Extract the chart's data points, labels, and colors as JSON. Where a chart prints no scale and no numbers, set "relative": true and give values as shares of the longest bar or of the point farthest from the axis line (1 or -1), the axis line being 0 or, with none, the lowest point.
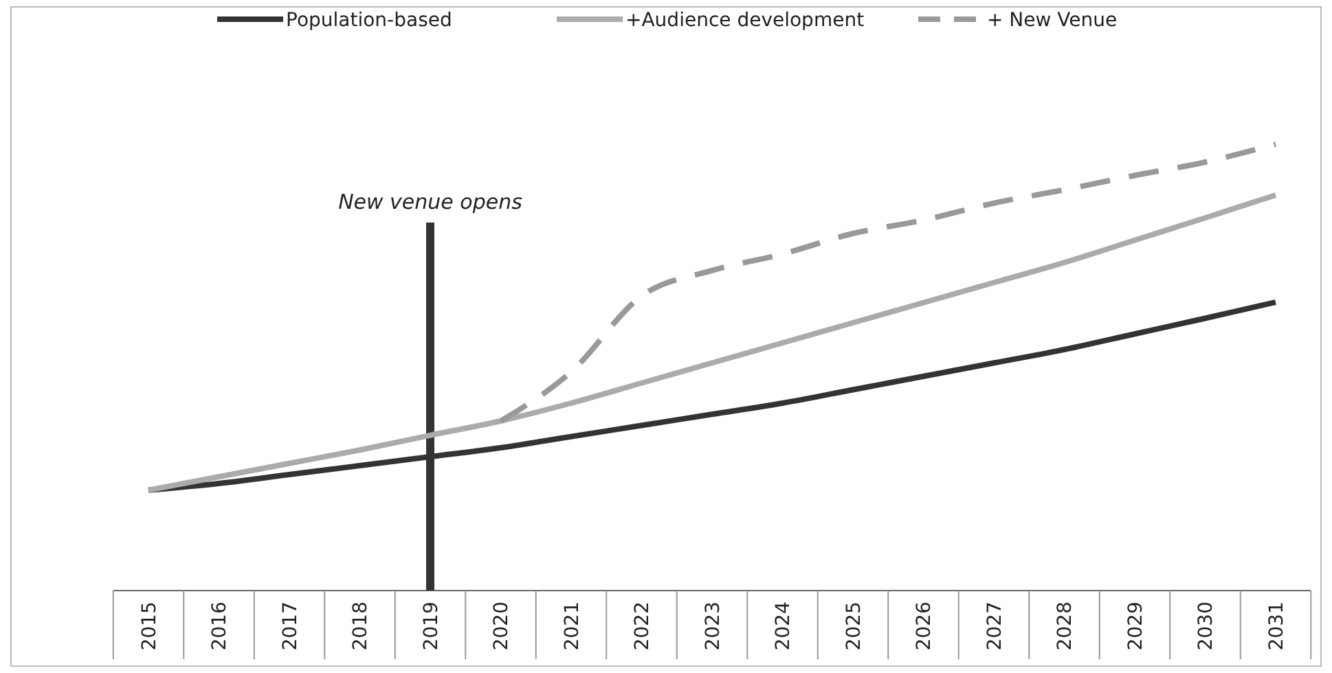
{
  "chart_data": {
    "type": "line",
    "relative": true,
    "legend": "top",
    "line_style": "solid",
    "marker": "none",
    "categories": [
      "2015",
      "2016",
      "2017",
      "2018",
      "2019",
      "2020",
      "2021",
      "2022",
      "2023",
      "2024",
      "2025",
      "2026",
      "2027",
      "2028",
      "2029",
      "2030",
      "2031"
    ],
    "series": [
      {
        "name": "Population-based",
        "color": "#333333",
        "values": [
          0.225,
          0.24,
          0.26,
          0.28,
          0.3,
          0.32,
          0.345,
          0.37,
          0.395,
          0.42,
          0.45,
          0.48,
          0.51,
          0.54,
          0.575,
          0.61,
          0.646
        ]
      },
      {
        "name": "+Audience development",
        "color": "#ababab",
        "values": [
          0.225,
          0.255,
          0.285,
          0.315,
          0.348,
          0.38,
          0.42,
          0.465,
          0.51,
          0.555,
          0.6,
          0.645,
          0.69,
          0.735,
          0.785,
          0.835,
          0.886
        ]
      },
      {
        "name": "+ New Venue",
        "color": "#999999",
        "line_style": "dashed",
        "values": [
          null,
          null,
          null,
          null,
          null,
          0.38,
          0.49,
          0.66,
          0.717,
          0.754,
          0.8,
          0.83,
          0.868,
          0.898,
          0.93,
          0.96,
          1
        ]
      }
    ],
    "ref_lines": [
      {
        "axis": "x",
        "value": "2019",
        "label": "New venue opens",
        "color": "#333333"
      }
    ]
  }
}
